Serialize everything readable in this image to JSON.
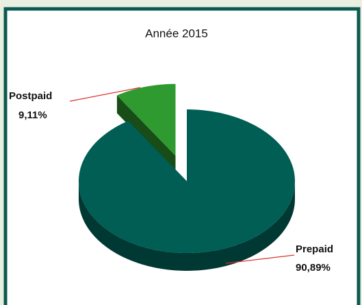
{
  "chart_data": {
    "type": "pie",
    "title": "Année 2015",
    "categories": [
      "Postpaid",
      "Prepaid"
    ],
    "values": [
      9.11,
      90.89
    ],
    "value_labels": [
      "9,11%",
      "90,89%"
    ],
    "colors": [
      "#2f9a2f",
      "#005e55"
    ],
    "exploded": [
      true,
      false
    ]
  }
}
